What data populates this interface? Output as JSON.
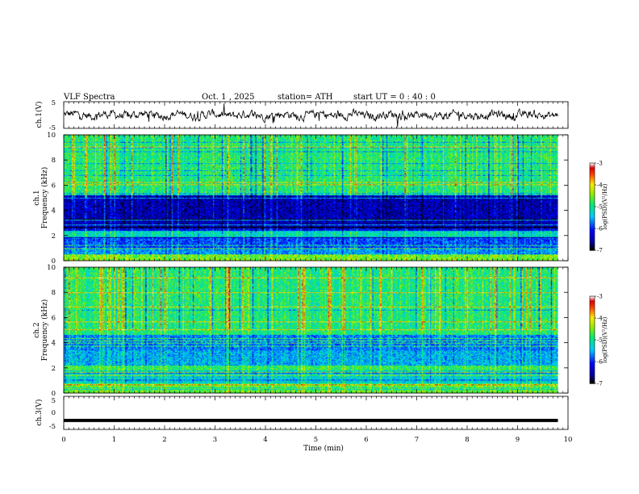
{
  "header": {
    "title": "VLF  Spectra",
    "date": "Oct. 1  , 2025",
    "station": "station= ATH",
    "start_ut": "start  UT  =    0 : 40 : 0"
  },
  "chart_data": [
    {
      "type": "line",
      "name": "ch.1 waveform",
      "ylabel": "ch.1(V)",
      "ylim": [
        -5,
        5
      ],
      "yticks": [
        "5",
        "-5"
      ],
      "x_range_min": [
        0,
        9.8
      ],
      "description_series": "broadband noise around 0 V, amplitude roughly ±2 V"
    },
    {
      "type": "heatmap",
      "name": "ch.1 spectrogram",
      "ylabel_top": "ch.1",
      "ylabel": "Frequency  (kHz)",
      "ylim": [
        0,
        10
      ],
      "yticks": [
        "0",
        "2",
        "4",
        "6",
        "8",
        "10"
      ],
      "colorbar": {
        "label": "log(PSD)(V²/Hz)",
        "ticks": [
          "-3",
          "-4",
          "-5",
          "-6",
          "-7"
        ],
        "range": [
          -7,
          -3
        ]
      },
      "bands_khz": [
        {
          "from": 0.0,
          "to": 0.5,
          "level": -4.5
        },
        {
          "from": 0.5,
          "to": 1.0,
          "level": -5.6
        },
        {
          "from": 1.0,
          "to": 1.9,
          "level": -5.9
        },
        {
          "from": 1.9,
          "to": 2.3,
          "level": -5.2
        },
        {
          "from": 2.3,
          "to": 2.6,
          "level": -6.2
        },
        {
          "from": 2.6,
          "to": 5.2,
          "level": -6.5
        },
        {
          "from": 5.2,
          "to": 10.0,
          "level": -4.9
        }
      ]
    },
    {
      "type": "heatmap",
      "name": "ch.2 spectrogram",
      "ylabel_top": "ch.2",
      "ylabel": "Frequency  (kHz)",
      "ylim": [
        0,
        10
      ],
      "yticks": [
        "0",
        "2",
        "4",
        "6",
        "8",
        "10"
      ],
      "colorbar": {
        "label": "log(PSD)(V²/Hz)",
        "ticks": [
          "-3",
          "-4",
          "-5",
          "-6",
          "-7"
        ],
        "range": [
          -7,
          -3
        ]
      },
      "bands_khz": [
        {
          "from": 0.0,
          "to": 0.8,
          "level": -4.6
        },
        {
          "from": 0.8,
          "to": 1.8,
          "level": -5.3
        },
        {
          "from": 1.8,
          "to": 2.2,
          "level": -4.8
        },
        {
          "from": 2.2,
          "to": 3.4,
          "level": -5.5
        },
        {
          "from": 3.4,
          "to": 4.6,
          "level": -5.7
        },
        {
          "from": 4.6,
          "to": 10.0,
          "level": -4.9
        }
      ]
    },
    {
      "type": "line",
      "name": "ch.3 waveform",
      "ylabel": "ch.3(V)",
      "ylim": [
        -5,
        5
      ],
      "yticks": [
        "5",
        "0",
        "-5"
      ],
      "constant_value": -2.3
    }
  ],
  "x_axis": {
    "label": "Time  (min)",
    "xlim": [
      0,
      10
    ],
    "ticks": [
      "0",
      "1",
      "2",
      "3",
      "4",
      "5",
      "6",
      "7",
      "8",
      "9",
      "10"
    ],
    "data_end_min": 9.8
  }
}
